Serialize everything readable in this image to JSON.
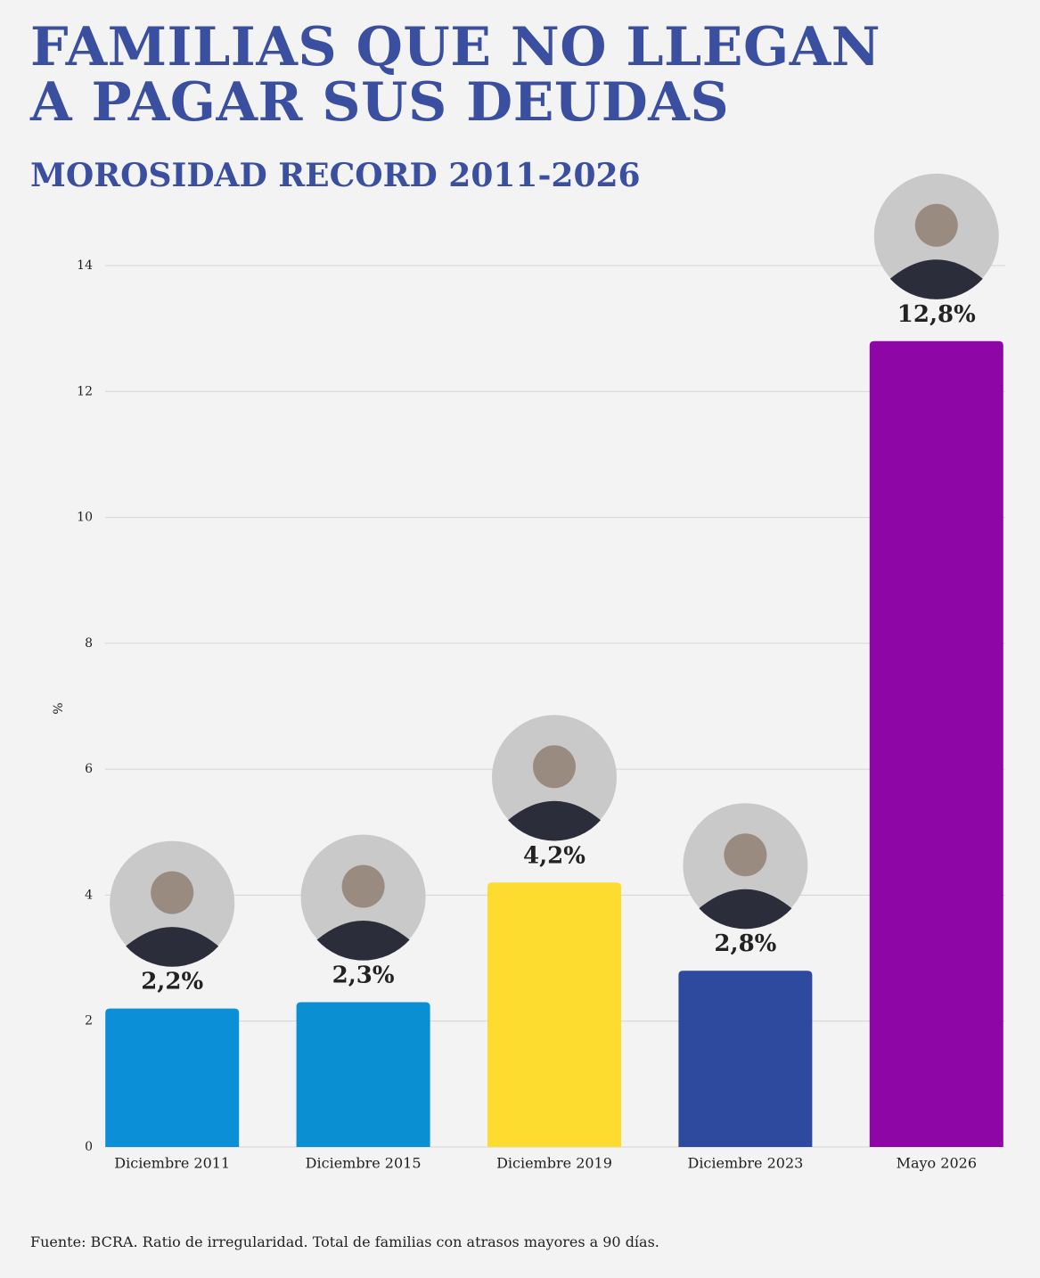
{
  "chart_data": {
    "type": "bar",
    "title": "FAMILIAS QUE NO LLEGAN A PAGAR SUS DEUDAS",
    "subtitle": "MOROSIDAD RECORD 2011-2026",
    "y_label": "%",
    "categories": [
      "Diciembre 2011",
      "Diciembre 2015",
      "Diciembre 2019",
      "Diciembre 2023",
      "Mayo 2026"
    ],
    "values": [
      2.2,
      2.3,
      4.2,
      2.8,
      12.8
    ],
    "value_labels": [
      "2,2%",
      "2,3%",
      "4,2%",
      "2,8%",
      "12,8%"
    ],
    "colors": [
      "#0b8fd6",
      "#0a8fd3",
      "#fddb2f",
      "#2e4a9e",
      "#8e06a5"
    ],
    "ylim": [
      0,
      14
    ],
    "yticks": [
      0,
      2,
      4,
      6,
      8,
      10,
      12,
      14
    ],
    "grid": true,
    "footnote": "Fuente: BCRA. Ratio de irregularidad. Total de familias con atrasos mayores a 90 días."
  }
}
